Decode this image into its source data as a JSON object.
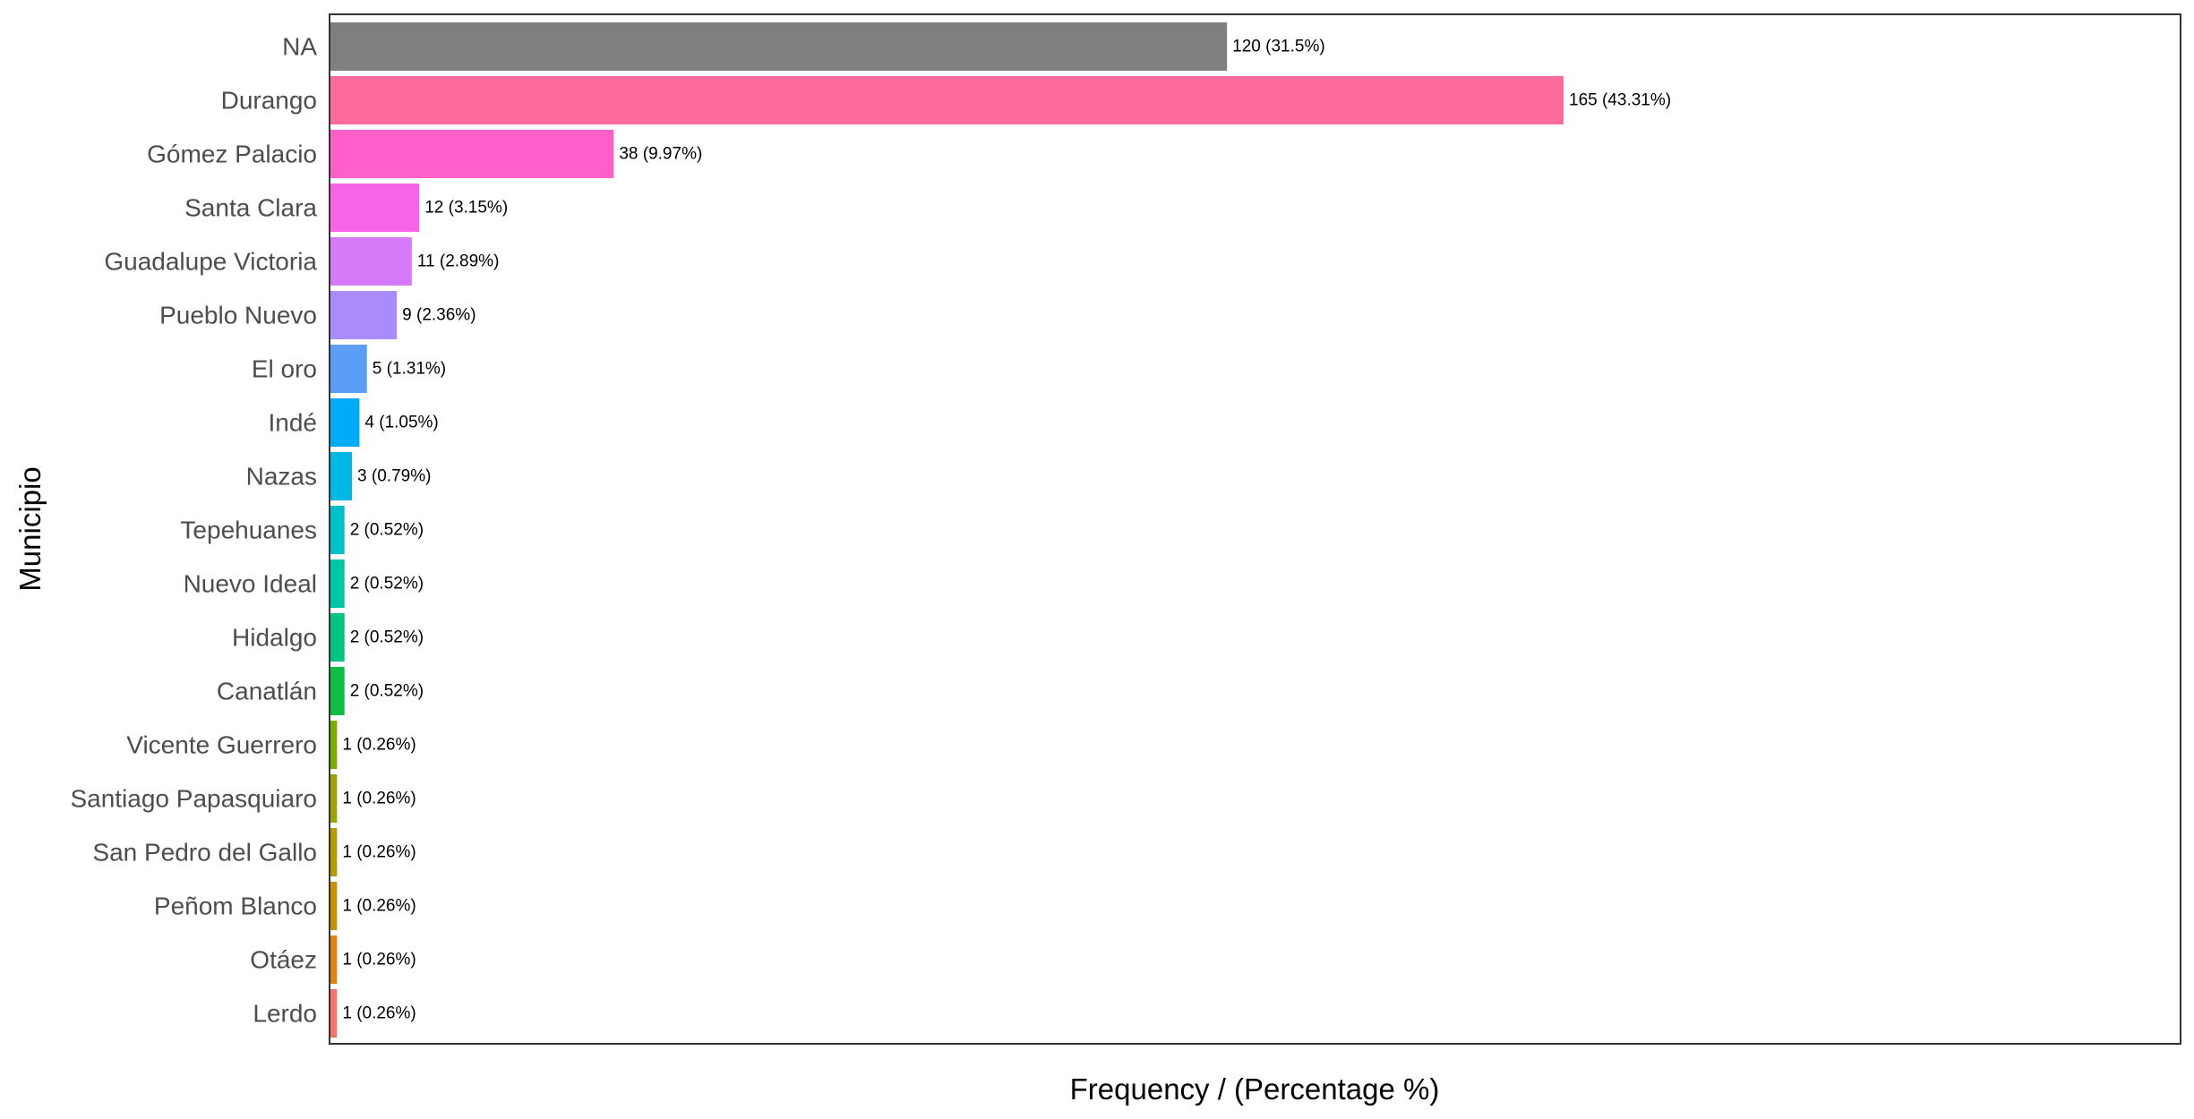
{
  "chart_data": {
    "type": "bar",
    "orientation": "horizontal",
    "xlabel": "Frequency / (Percentage %)",
    "ylabel": "Municipio",
    "xlim": [
      0,
      247.5
    ],
    "grid": false,
    "legend": "none",
    "categories": [
      "NA",
      "Durango",
      "Gómez Palacio",
      "Santa Clara",
      "Guadalupe Victoria",
      "Pueblo Nuevo",
      "El oro",
      "Indé",
      "Nazas",
      "Tepehuanes",
      "Nuevo Ideal",
      "Hidalgo",
      "Canatlán",
      "Vicente Guerrero",
      "Santiago Papasquiaro",
      "San Pedro del Gallo",
      "Peñom Blanco",
      "Otáez",
      "Lerdo"
    ],
    "values": [
      120,
      165,
      38,
      12,
      11,
      9,
      5,
      4,
      3,
      2,
      2,
      2,
      2,
      1,
      1,
      1,
      1,
      1,
      1
    ],
    "data_labels": [
      "120 (31.5%)",
      "165 (43.31%)",
      "38 (9.97%)",
      "12 (3.15%)",
      "11 (2.89%)",
      "9 (2.36%)",
      "5 (1.31%)",
      "4 (1.05%)",
      "3 (0.79%)",
      "2 (0.52%)",
      "2 (0.52%)",
      "2 (0.52%)",
      "2 (0.52%)",
      "1 (0.26%)",
      "1 (0.26%)",
      "1 (0.26%)",
      "1 (0.26%)",
      "1 (0.26%)",
      "1 (0.26%)"
    ],
    "colors": [
      "#7f7f7f",
      "#ff6a9c",
      "#ff5fc9",
      "#f565e6",
      "#d77af9",
      "#a98bf9",
      "#5b9df9",
      "#00acf7",
      "#00b8e6",
      "#00c1c9",
      "#00c6a8",
      "#00c581",
      "#0ebd44",
      "#7aad00",
      "#9ea400",
      "#b49c00",
      "#c99100",
      "#e0820f",
      "#f4746c"
    ]
  }
}
